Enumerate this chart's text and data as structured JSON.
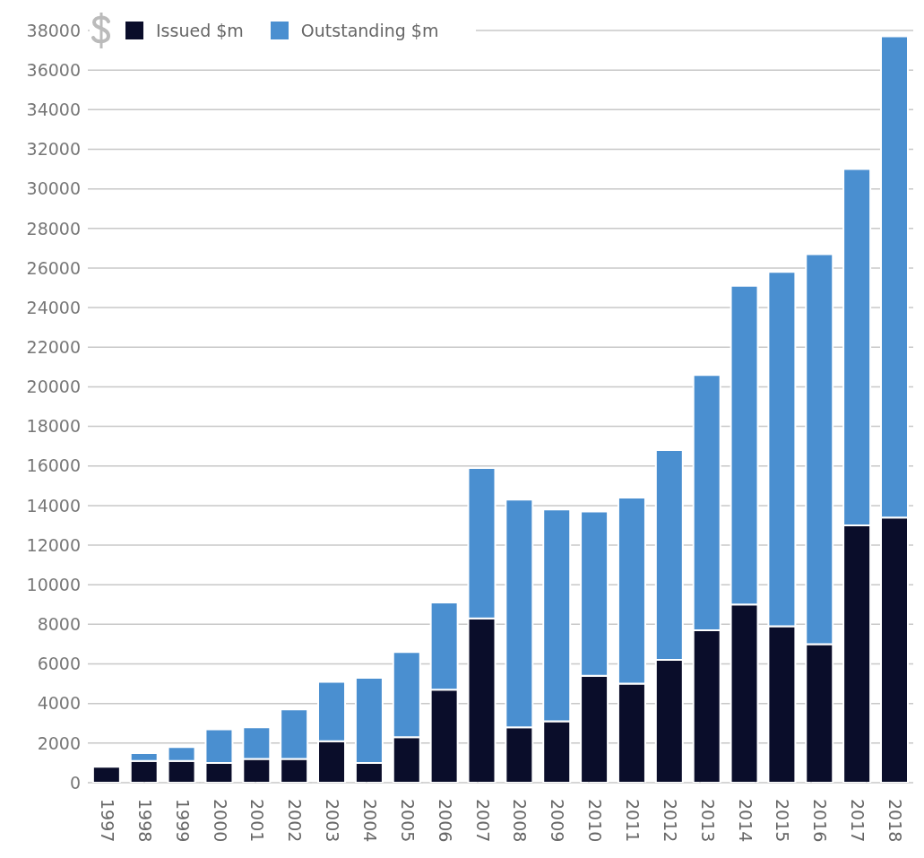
{
  "chart_data": {
    "type": "bar",
    "stacked": true,
    "categories": [
      "1997",
      "1998",
      "1999",
      "2000",
      "2001",
      "2002",
      "2003",
      "2004",
      "2005",
      "2006",
      "2007",
      "2008",
      "2009",
      "2010",
      "2011",
      "2012",
      "2013",
      "2014",
      "2015",
      "2016",
      "2017",
      "2018"
    ],
    "series": [
      {
        "name": "Issued $m",
        "color": "#0a0d2a",
        "values": [
          800,
          1100,
          1100,
          1000,
          1200,
          1200,
          2100,
          1000,
          2300,
          4700,
          8300,
          2800,
          3100,
          5400,
          5000,
          6200,
          7700,
          9000,
          7900,
          7000,
          13000,
          13400
        ]
      },
      {
        "name": "Outstanding $m",
        "color": "#4a8fd0",
        "values": [
          0,
          400,
          700,
          1700,
          1600,
          2500,
          3000,
          4300,
          4300,
          4400,
          7600,
          11500,
          10700,
          8300,
          9400,
          10600,
          12900,
          16100,
          17900,
          19700,
          18000,
          24300
        ]
      }
    ],
    "ylim": [
      0,
      38000
    ],
    "yticks": [
      0,
      2000,
      4000,
      6000,
      8000,
      10000,
      12000,
      14000,
      16000,
      18000,
      20000,
      22000,
      24000,
      26000,
      28000,
      30000,
      32000,
      34000,
      36000,
      38000
    ],
    "grid": "y",
    "legend": "top left"
  }
}
